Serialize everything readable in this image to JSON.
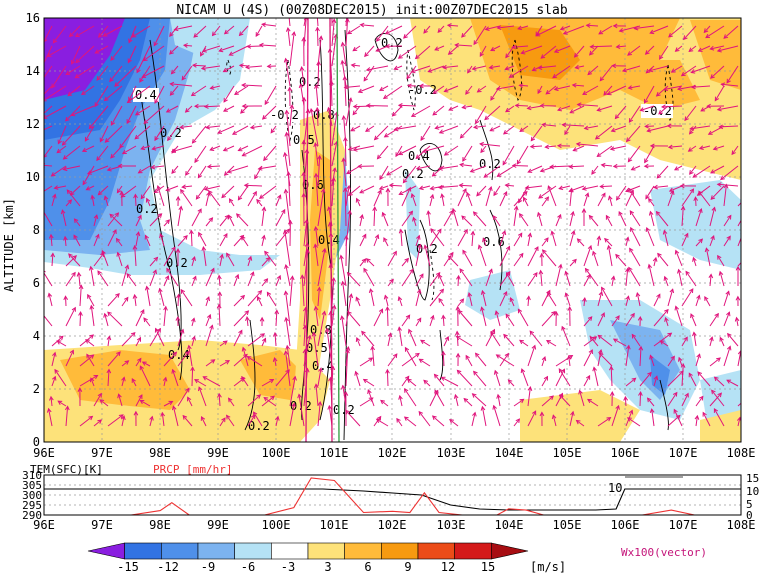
{
  "chart_data": [
    {
      "type": "heatmap",
      "title": "NICAM U (4S) (00Z08DEC2015) init:00Z07DEC2015 slab",
      "ylabel": "ALTITUDE [km]",
      "xlabel": "",
      "xlim": [
        96,
        108
      ],
      "ylim": [
        0,
        16
      ],
      "x_ticks": [
        "96E",
        "97E",
        "98E",
        "99E",
        "100E",
        "101E",
        "102E",
        "103E",
        "104E",
        "105E",
        "106E",
        "107E",
        "108E"
      ],
      "y_ticks": [
        "0",
        "2",
        "4",
        "6",
        "8",
        "10",
        "12",
        "14",
        "16"
      ],
      "grid": true,
      "contour_labels": [
        "0.4",
        "0.2",
        "0.2",
        "0.2",
        "0.4",
        "0.2",
        "-0.2",
        "0.8",
        "0.5",
        "0.6",
        "0.4",
        "0.8",
        "0.5",
        "0.4",
        "0.2",
        "0.2",
        "0.2",
        "-0.2",
        "0.2",
        "0.4",
        "0.2",
        "0.2",
        "0.6",
        "0.2",
        "-0.2"
      ],
      "legend_vector": "Wx100(vector)"
    },
    {
      "type": "line",
      "series": [
        {
          "name": "TEM(SFC)[K]",
          "color": "#000000",
          "x": [
            96,
            97,
            98,
            99,
            100,
            100.8,
            101.5,
            102,
            102.5,
            103,
            103.5,
            104,
            104.5,
            105,
            105.5,
            105.85,
            106,
            107,
            108
          ],
          "values": [
            303,
            303,
            303,
            303,
            303,
            303,
            302,
            301,
            300,
            295,
            293,
            292.5,
            292.5,
            292.5,
            292.5,
            293,
            303,
            303,
            303
          ]
        },
        {
          "name": "PRCP [mm/hr]",
          "color": "#ee3333",
          "x": [
            96,
            97.5,
            98.0,
            98.2,
            98.5,
            99,
            99.8,
            100.3,
            100.6,
            101,
            101.5,
            102,
            102.3,
            102.55,
            102.8,
            103.2,
            103.8,
            104.0,
            104.3,
            104.6,
            105,
            105.5,
            106.3,
            106.8,
            107.2,
            108
          ],
          "values": [
            0,
            0,
            1.8,
            5,
            0,
            0,
            0,
            3,
            15,
            14,
            1,
            1.5,
            1,
            9,
            1,
            0,
            0,
            2.5,
            2,
            0,
            0,
            0,
            0,
            2,
            0,
            0
          ]
        }
      ],
      "xlim": [
        96,
        108
      ],
      "y_left_ticks": [
        "310",
        "305",
        "300",
        "295",
        "290"
      ],
      "y_right_ticks": [
        "15",
        "10",
        "5",
        "0"
      ],
      "annotation": "10"
    },
    {
      "type": "colorbar",
      "tick_labels": [
        "-15",
        "-12",
        "-9",
        "-6",
        "-3",
        "3",
        "6",
        "9",
        "12",
        "15"
      ],
      "unit": "[m/s]",
      "colors": [
        "#8a1ee0",
        "#3273e3",
        "#4f90ea",
        "#7cb3f0",
        "#b5e2f5",
        "#ffffff",
        "#fde27a",
        "#ffbb3a",
        "#f79a10",
        "#ec4c18",
        "#d41a1a",
        "#a70d12"
      ]
    }
  ]
}
